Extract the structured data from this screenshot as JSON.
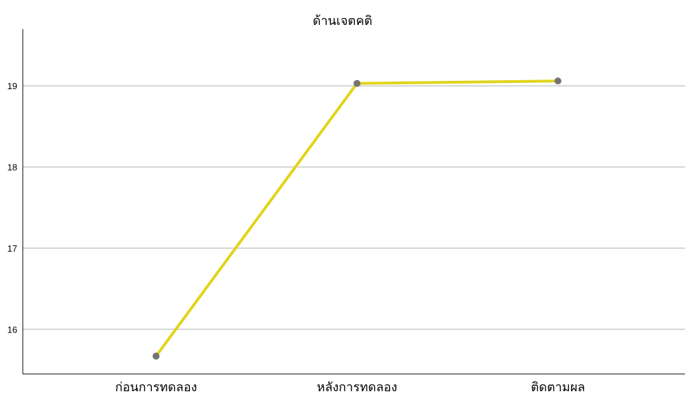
{
  "chart_data": {
    "type": "line",
    "title": "ด้านเจตคติ",
    "categories": [
      "ก่อนการทดลอง",
      "หลังการทดลอง",
      "ติดตามผล"
    ],
    "series": [
      {
        "values": [
          15.67,
          19.03,
          19.06
        ]
      }
    ],
    "ylim": [
      15.45,
      19.7
    ],
    "yticks": [
      16,
      17,
      18,
      19
    ],
    "grid": true,
    "line_color": "#e0d41a",
    "marker_color": "#737373"
  }
}
